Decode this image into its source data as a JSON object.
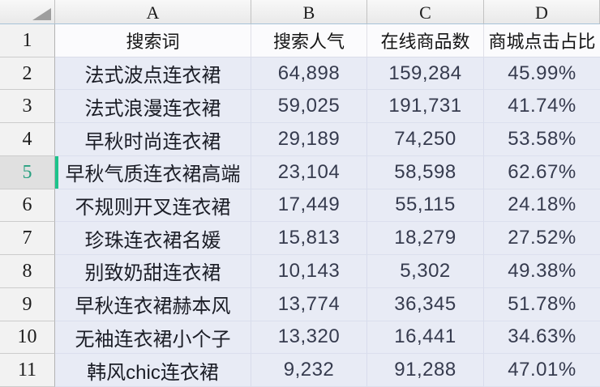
{
  "app": {
    "kind": "spreadsheet-grid"
  },
  "colors": {
    "selection_accent": "#1dc38b",
    "selected_row_number": "#2aa181",
    "data_area_background": "#e8ebf5",
    "header_background": "#f0f0f0"
  },
  "sheet": {
    "column_letters": [
      "A",
      "B",
      "C",
      "D"
    ],
    "selected_row_number": "5",
    "rows": [
      {
        "n": "1",
        "a": "搜索词",
        "b": "搜索人气",
        "c": "在线商品数",
        "d": "商城点击占比"
      },
      {
        "n": "2",
        "a": "法式波点连衣裙",
        "b": "64,898",
        "c": "159,284",
        "d": "45.99%"
      },
      {
        "n": "3",
        "a": "法式浪漫连衣裙",
        "b": "59,025",
        "c": "191,731",
        "d": "41.74%"
      },
      {
        "n": "4",
        "a": "早秋时尚连衣裙",
        "b": "29,189",
        "c": "74,250",
        "d": "53.58%"
      },
      {
        "n": "5",
        "a": "早秋气质连衣裙高端",
        "b": "23,104",
        "c": "58,598",
        "d": "62.67%"
      },
      {
        "n": "6",
        "a": "不规则开叉连衣裙",
        "b": "17,449",
        "c": "55,115",
        "d": "24.18%"
      },
      {
        "n": "7",
        "a": "珍珠连衣裙名媛",
        "b": "15,813",
        "c": "18,279",
        "d": "27.52%"
      },
      {
        "n": "8",
        "a": "别致奶甜连衣裙",
        "b": "10,143",
        "c": "5,302",
        "d": "49.38%"
      },
      {
        "n": "9",
        "a": "早秋连衣裙赫本风",
        "b": "13,774",
        "c": "36,345",
        "d": "51.78%"
      },
      {
        "n": "10",
        "a": "无袖连衣裙小个子",
        "b": "13,320",
        "c": "16,441",
        "d": "34.63%"
      },
      {
        "n": "11",
        "a": "韩风chic连衣裙",
        "b": "9,232",
        "c": "91,288",
        "d": "47.01%"
      }
    ]
  }
}
